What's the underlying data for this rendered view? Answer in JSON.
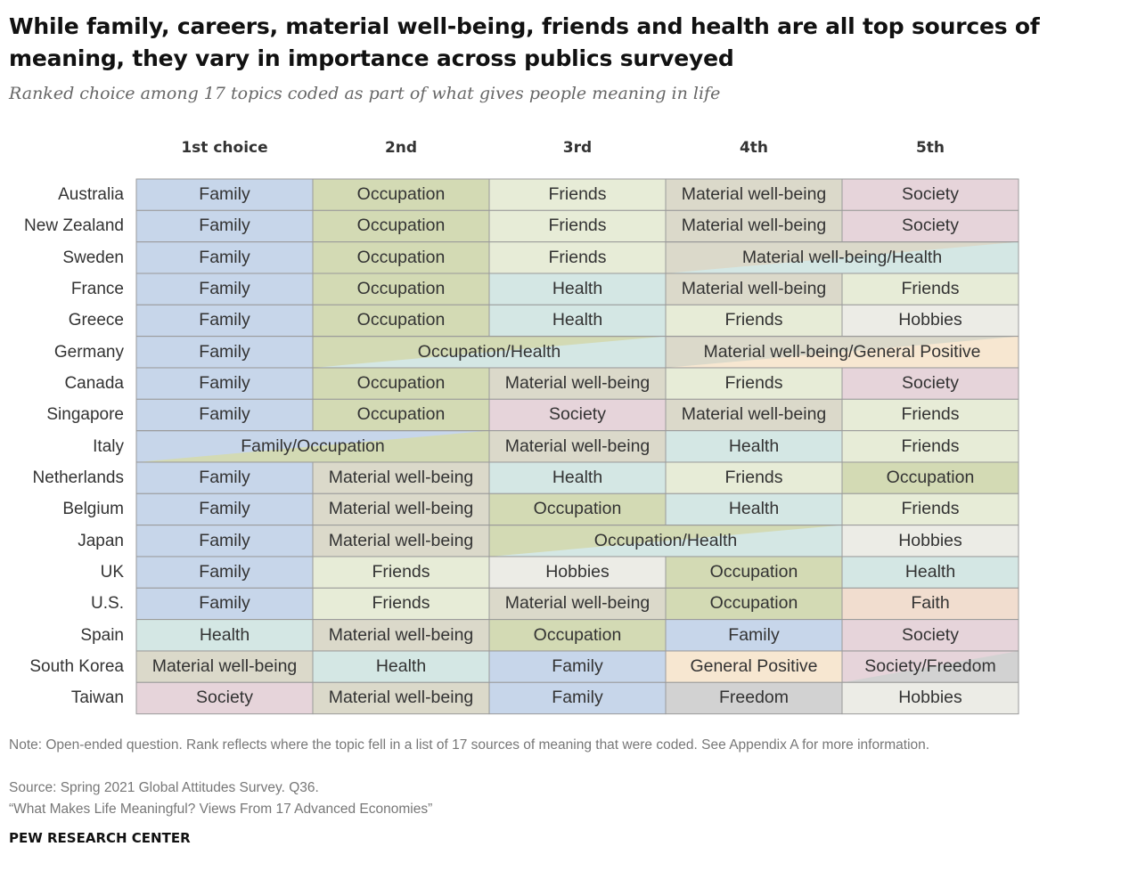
{
  "title": "While family, careers, material well-being, friends and health are all top sources of meaning, they vary in importance across publics surveyed",
  "subtitle": "Ranked choice among 17 topics coded as part of what gives people meaning in life",
  "note": "Note: Open-ended question. Rank reflects where the topic fell in a list of 17 sources of meaning that were coded. See Appendix A for more information.",
  "source": "Source: Spring 2021 Global Attitudes Survey. Q36.",
  "report": "“What Makes Life Meaningful? Views From 17 Advanced Economies”",
  "brand": "PEW RESEARCH CENTER",
  "chart_data": {
    "type": "table",
    "columns": [
      "1st choice",
      "2nd",
      "3rd",
      "4th",
      "5th"
    ],
    "colors": {
      "Family": "#c7d6ea",
      "Occupation": "#d3dab4",
      "Friends": "#e7ecd7",
      "Material well-being": "#dbd9ca",
      "Society": "#e6d4da",
      "Health": "#d4e7e4",
      "Hobbies": "#ecece6",
      "General Positive": "#f7e7d1",
      "Faith": "#f1ddcf",
      "Freedom": "#d2d2d2"
    },
    "rows": [
      {
        "country": "Australia",
        "cells": [
          {
            "label": "Family",
            "span": 1,
            "topics": [
              "Family"
            ]
          },
          {
            "label": "Occupation",
            "span": 1,
            "topics": [
              "Occupation"
            ]
          },
          {
            "label": "Friends",
            "span": 1,
            "topics": [
              "Friends"
            ]
          },
          {
            "label": "Material well-being",
            "span": 1,
            "topics": [
              "Material well-being"
            ]
          },
          {
            "label": "Society",
            "span": 1,
            "topics": [
              "Society"
            ]
          }
        ]
      },
      {
        "country": "New Zealand",
        "cells": [
          {
            "label": "Family",
            "span": 1,
            "topics": [
              "Family"
            ]
          },
          {
            "label": "Occupation",
            "span": 1,
            "topics": [
              "Occupation"
            ]
          },
          {
            "label": "Friends",
            "span": 1,
            "topics": [
              "Friends"
            ]
          },
          {
            "label": "Material well-being",
            "span": 1,
            "topics": [
              "Material well-being"
            ]
          },
          {
            "label": "Society",
            "span": 1,
            "topics": [
              "Society"
            ]
          }
        ]
      },
      {
        "country": "Sweden",
        "cells": [
          {
            "label": "Family",
            "span": 1,
            "topics": [
              "Family"
            ]
          },
          {
            "label": "Occupation",
            "span": 1,
            "topics": [
              "Occupation"
            ]
          },
          {
            "label": "Friends",
            "span": 1,
            "topics": [
              "Friends"
            ]
          },
          {
            "label": "Material well-being/Health",
            "span": 2,
            "topics": [
              "Material well-being",
              "Health"
            ]
          }
        ]
      },
      {
        "country": "France",
        "cells": [
          {
            "label": "Family",
            "span": 1,
            "topics": [
              "Family"
            ]
          },
          {
            "label": "Occupation",
            "span": 1,
            "topics": [
              "Occupation"
            ]
          },
          {
            "label": "Health",
            "span": 1,
            "topics": [
              "Health"
            ]
          },
          {
            "label": "Material well-being",
            "span": 1,
            "topics": [
              "Material well-being"
            ]
          },
          {
            "label": "Friends",
            "span": 1,
            "topics": [
              "Friends"
            ]
          }
        ]
      },
      {
        "country": "Greece",
        "cells": [
          {
            "label": "Family",
            "span": 1,
            "topics": [
              "Family"
            ]
          },
          {
            "label": "Occupation",
            "span": 1,
            "topics": [
              "Occupation"
            ]
          },
          {
            "label": "Health",
            "span": 1,
            "topics": [
              "Health"
            ]
          },
          {
            "label": "Friends",
            "span": 1,
            "topics": [
              "Friends"
            ]
          },
          {
            "label": "Hobbies",
            "span": 1,
            "topics": [
              "Hobbies"
            ]
          }
        ]
      },
      {
        "country": "Germany",
        "cells": [
          {
            "label": "Family",
            "span": 1,
            "topics": [
              "Family"
            ]
          },
          {
            "label": "Occupation/Health",
            "span": 2,
            "topics": [
              "Occupation",
              "Health"
            ]
          },
          {
            "label": "Material well-being/General Positive",
            "span": 2,
            "topics": [
              "Material well-being",
              "General Positive"
            ]
          }
        ]
      },
      {
        "country": "Canada",
        "cells": [
          {
            "label": "Family",
            "span": 1,
            "topics": [
              "Family"
            ]
          },
          {
            "label": "Occupation",
            "span": 1,
            "topics": [
              "Occupation"
            ]
          },
          {
            "label": "Material well-being",
            "span": 1,
            "topics": [
              "Material well-being"
            ]
          },
          {
            "label": "Friends",
            "span": 1,
            "topics": [
              "Friends"
            ]
          },
          {
            "label": "Society",
            "span": 1,
            "topics": [
              "Society"
            ]
          }
        ]
      },
      {
        "country": "Singapore",
        "cells": [
          {
            "label": "Family",
            "span": 1,
            "topics": [
              "Family"
            ]
          },
          {
            "label": "Occupation",
            "span": 1,
            "topics": [
              "Occupation"
            ]
          },
          {
            "label": "Society",
            "span": 1,
            "topics": [
              "Society"
            ]
          },
          {
            "label": "Material well-being",
            "span": 1,
            "topics": [
              "Material well-being"
            ]
          },
          {
            "label": "Friends",
            "span": 1,
            "topics": [
              "Friends"
            ]
          }
        ]
      },
      {
        "country": "Italy",
        "cells": [
          {
            "label": "Family/Occupation",
            "span": 2,
            "topics": [
              "Family",
              "Occupation"
            ]
          },
          {
            "label": "Material well-being",
            "span": 1,
            "topics": [
              "Material well-being"
            ]
          },
          {
            "label": "Health",
            "span": 1,
            "topics": [
              "Health"
            ]
          },
          {
            "label": "Friends",
            "span": 1,
            "topics": [
              "Friends"
            ]
          }
        ]
      },
      {
        "country": "Netherlands",
        "cells": [
          {
            "label": "Family",
            "span": 1,
            "topics": [
              "Family"
            ]
          },
          {
            "label": "Material well-being",
            "span": 1,
            "topics": [
              "Material well-being"
            ]
          },
          {
            "label": "Health",
            "span": 1,
            "topics": [
              "Health"
            ]
          },
          {
            "label": "Friends",
            "span": 1,
            "topics": [
              "Friends"
            ]
          },
          {
            "label": "Occupation",
            "span": 1,
            "topics": [
              "Occupation"
            ]
          }
        ]
      },
      {
        "country": "Belgium",
        "cells": [
          {
            "label": "Family",
            "span": 1,
            "topics": [
              "Family"
            ]
          },
          {
            "label": "Material well-being",
            "span": 1,
            "topics": [
              "Material well-being"
            ]
          },
          {
            "label": "Occupation",
            "span": 1,
            "topics": [
              "Occupation"
            ]
          },
          {
            "label": "Health",
            "span": 1,
            "topics": [
              "Health"
            ]
          },
          {
            "label": "Friends",
            "span": 1,
            "topics": [
              "Friends"
            ]
          }
        ]
      },
      {
        "country": "Japan",
        "cells": [
          {
            "label": "Family",
            "span": 1,
            "topics": [
              "Family"
            ]
          },
          {
            "label": "Material well-being",
            "span": 1,
            "topics": [
              "Material well-being"
            ]
          },
          {
            "label": "Occupation/Health",
            "span": 2,
            "topics": [
              "Occupation",
              "Health"
            ]
          },
          {
            "label": "Hobbies",
            "span": 1,
            "topics": [
              "Hobbies"
            ]
          }
        ]
      },
      {
        "country": "UK",
        "cells": [
          {
            "label": "Family",
            "span": 1,
            "topics": [
              "Family"
            ]
          },
          {
            "label": "Friends",
            "span": 1,
            "topics": [
              "Friends"
            ]
          },
          {
            "label": "Hobbies",
            "span": 1,
            "topics": [
              "Hobbies"
            ]
          },
          {
            "label": "Occupation",
            "span": 1,
            "topics": [
              "Occupation"
            ]
          },
          {
            "label": "Health",
            "span": 1,
            "topics": [
              "Health"
            ]
          }
        ]
      },
      {
        "country": "U.S.",
        "cells": [
          {
            "label": "Family",
            "span": 1,
            "topics": [
              "Family"
            ]
          },
          {
            "label": "Friends",
            "span": 1,
            "topics": [
              "Friends"
            ]
          },
          {
            "label": "Material well-being",
            "span": 1,
            "topics": [
              "Material well-being"
            ]
          },
          {
            "label": "Occupation",
            "span": 1,
            "topics": [
              "Occupation"
            ]
          },
          {
            "label": "Faith",
            "span": 1,
            "topics": [
              "Faith"
            ]
          }
        ]
      },
      {
        "country": "Spain",
        "cells": [
          {
            "label": "Health",
            "span": 1,
            "topics": [
              "Health"
            ]
          },
          {
            "label": "Material well-being",
            "span": 1,
            "topics": [
              "Material well-being"
            ]
          },
          {
            "label": "Occupation",
            "span": 1,
            "topics": [
              "Occupation"
            ]
          },
          {
            "label": "Family",
            "span": 1,
            "topics": [
              "Family"
            ]
          },
          {
            "label": "Society",
            "span": 1,
            "topics": [
              "Society"
            ]
          }
        ]
      },
      {
        "country": "South Korea",
        "cells": [
          {
            "label": "Material well-being",
            "span": 1,
            "topics": [
              "Material well-being"
            ]
          },
          {
            "label": "Health",
            "span": 1,
            "topics": [
              "Health"
            ]
          },
          {
            "label": "Family",
            "span": 1,
            "topics": [
              "Family"
            ]
          },
          {
            "label": "General Positive",
            "span": 1,
            "topics": [
              "General Positive"
            ]
          },
          {
            "label": "Society/Freedom",
            "span": 1,
            "topics": [
              "Society",
              "Freedom"
            ]
          }
        ]
      },
      {
        "country": "Taiwan",
        "cells": [
          {
            "label": "Society",
            "span": 1,
            "topics": [
              "Society"
            ]
          },
          {
            "label": "Material well-being",
            "span": 1,
            "topics": [
              "Material well-being"
            ]
          },
          {
            "label": "Family",
            "span": 1,
            "topics": [
              "Family"
            ]
          },
          {
            "label": "Freedom",
            "span": 1,
            "topics": [
              "Freedom"
            ]
          },
          {
            "label": "Hobbies",
            "span": 1,
            "topics": [
              "Hobbies"
            ]
          }
        ]
      }
    ]
  }
}
